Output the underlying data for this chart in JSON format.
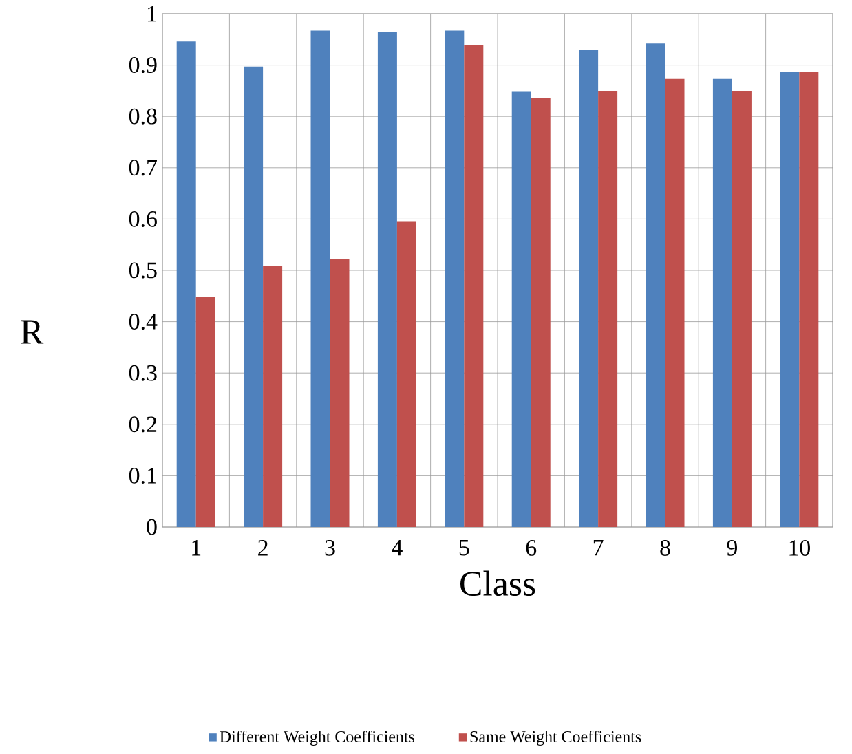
{
  "chart_data": {
    "type": "bar",
    "xlabel": "Class",
    "ylabel": "R",
    "categories": [
      "1",
      "2",
      "3",
      "4",
      "5",
      "6",
      "7",
      "8",
      "9",
      "10"
    ],
    "series": [
      {
        "name": "Different Weight Coefficients",
        "color": "#4f81bd",
        "values": [
          0.946,
          0.897,
          0.967,
          0.964,
          0.967,
          0.848,
          0.929,
          0.942,
          0.873,
          0.886
        ]
      },
      {
        "name": "Same Weight Coefficients",
        "color": "#c0504d",
        "values": [
          0.448,
          0.509,
          0.522,
          0.596,
          0.939,
          0.835,
          0.85,
          0.873,
          0.85,
          0.886
        ]
      }
    ],
    "ylim": [
      0,
      1
    ],
    "yticks": [
      0,
      0.1,
      0.2,
      0.3,
      0.4,
      0.5,
      0.6,
      0.7,
      0.8,
      0.9,
      1
    ],
    "grid": true,
    "legend": "bottom"
  }
}
